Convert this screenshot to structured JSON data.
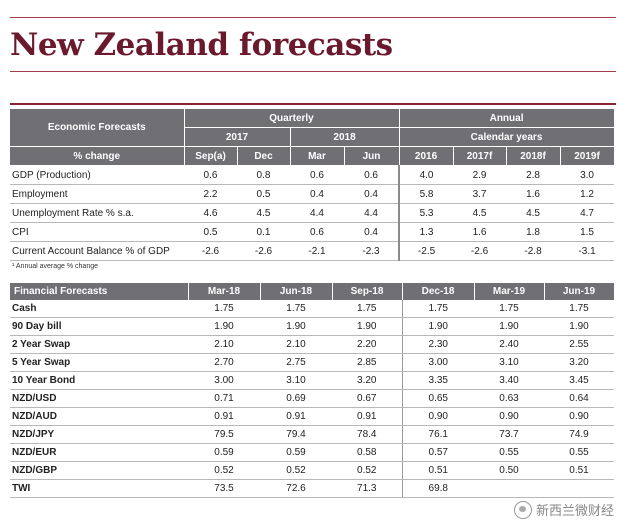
{
  "title": "New Zealand forecasts",
  "economic": {
    "header_label": "Economic Forecasts",
    "sub_label": "% change",
    "quarterly_label": "Quarterly",
    "annual_label": "Annual",
    "year_2017": "2017",
    "year_2018": "2018",
    "calendar_years": "Calendar years",
    "columns": [
      "Sep(a)",
      "Dec",
      "Mar",
      "Jun",
      "2016",
      "2017f",
      "2018f",
      "2019f"
    ],
    "rows": [
      {
        "label": "GDP (Production)",
        "values": [
          "0.6",
          "0.8",
          "0.6",
          "0.6",
          "4.0",
          "2.9",
          "2.8",
          "3.0"
        ]
      },
      {
        "label": "Employment",
        "values": [
          "2.2",
          "0.5",
          "0.4",
          "0.4",
          "5.8",
          "3.7",
          "1.6",
          "1.2"
        ]
      },
      {
        "label": "Unemployment Rate % s.a.",
        "values": [
          "4.6",
          "4.5",
          "4.4",
          "4.4",
          "5.3",
          "4.5",
          "4.5",
          "4.7"
        ]
      },
      {
        "label": "CPI",
        "values": [
          "0.5",
          "0.1",
          "0.6",
          "0.4",
          "1.3",
          "1.6",
          "1.8",
          "1.5"
        ]
      },
      {
        "label": "Current Account Balance % of GDP",
        "values": [
          "-2.6",
          "-2.6",
          "-2.1",
          "-2.3",
          "-2.5",
          "-2.6",
          "-2.8",
          "-3.1"
        ]
      }
    ],
    "footnote": "¹ Annual average % change"
  },
  "financial": {
    "header_label": "Financial Forecasts",
    "columns": [
      "Mar-18",
      "Jun-18",
      "Sep-18",
      "Dec-18",
      "Mar-19",
      "Jun-19"
    ],
    "rows": [
      {
        "label": "Cash",
        "values": [
          "1.75",
          "1.75",
          "1.75",
          "1.75",
          "1.75",
          "1.75"
        ]
      },
      {
        "label": "90 Day bill",
        "values": [
          "1.90",
          "1.90",
          "1.90",
          "1.90",
          "1.90",
          "1.90"
        ]
      },
      {
        "label": "2 Year Swap",
        "values": [
          "2.10",
          "2.10",
          "2.20",
          "2.30",
          "2.40",
          "2.55"
        ]
      },
      {
        "label": "5 Year Swap",
        "values": [
          "2.70",
          "2.75",
          "2.85",
          "3.00",
          "3.10",
          "3.20"
        ]
      },
      {
        "label": "10 Year Bond",
        "values": [
          "3.00",
          "3.10",
          "3.20",
          "3.35",
          "3.40",
          "3.45"
        ]
      },
      {
        "label": "NZD/USD",
        "values": [
          "0.71",
          "0.69",
          "0.67",
          "0.65",
          "0.63",
          "0.64"
        ]
      },
      {
        "label": "NZD/AUD",
        "values": [
          "0.91",
          "0.91",
          "0.91",
          "0.90",
          "0.90",
          "0.90"
        ]
      },
      {
        "label": "NZD/JPY",
        "values": [
          "79.5",
          "79.4",
          "78.4",
          "76.1",
          "73.7",
          "74.9"
        ]
      },
      {
        "label": "NZD/EUR",
        "values": [
          "0.59",
          "0.59",
          "0.58",
          "0.57",
          "0.55",
          "0.55"
        ]
      },
      {
        "label": "NZD/GBP",
        "values": [
          "0.52",
          "0.52",
          "0.52",
          "0.51",
          "0.50",
          "0.51"
        ]
      },
      {
        "label": "TWI",
        "values": [
          "73.5",
          "72.6",
          "71.3",
          "69.8",
          "",
          ""
        ]
      }
    ]
  },
  "watermark": {
    "text": "新西兰微财经",
    "icon": "wechat-logo-icon"
  },
  "colors": {
    "title": "#6b1a2d",
    "rule": "#a23c4a",
    "header_bg": "#6f6f74"
  }
}
